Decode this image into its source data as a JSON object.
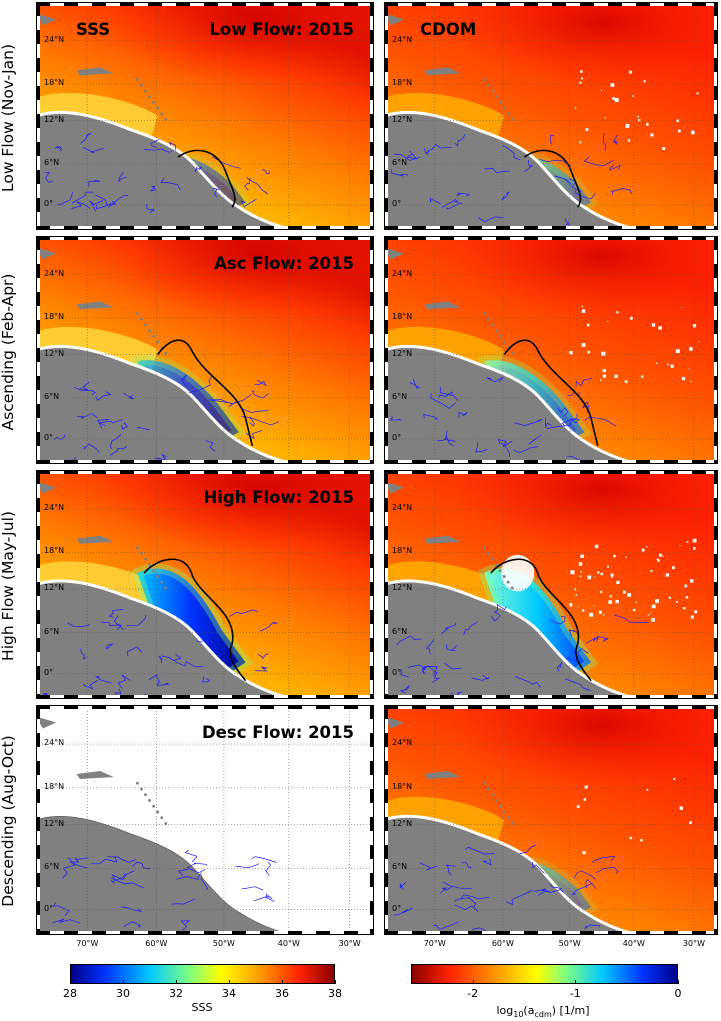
{
  "figure": {
    "left_column_title": "SSS",
    "right_column_title": "CDOM",
    "rows": [
      {
        "row_label": "Low Flow (Nov-Jan)",
        "panel_title": "Low Flow: 2015"
      },
      {
        "row_label": "Ascending (Feb-Apr)",
        "panel_title": "Asc Flow: 2015"
      },
      {
        "row_label": "High Flow (May-Jul)",
        "panel_title": "High Flow: 2015"
      },
      {
        "row_label": "Descending (Aug-Oct)",
        "panel_title": "Desc Flow: 2015"
      }
    ],
    "lat_ticks": [
      "24°N",
      "18°N",
      "12°N",
      "6°N",
      "0°"
    ],
    "lon_ticks": [
      "70°W",
      "60°W",
      "50°W",
      "40°W",
      "30°W"
    ]
  },
  "chart_data": [
    {
      "type": "heatmap",
      "variable": "SSS",
      "colorbar_label": "SSS",
      "colorbar_ticks": [
        "28",
        "30",
        "32",
        "34",
        "36",
        "38"
      ],
      "colorbar_range": [
        28,
        38
      ],
      "colormap": [
        "#00008b",
        "#0033ff",
        "#00c8ff",
        "#7fff7f",
        "#ffff00",
        "#ff9900",
        "#ff2200",
        "#8b0000"
      ],
      "ticks_lat": [
        24,
        18,
        12,
        6,
        0
      ],
      "ticks_lon": [
        -70,
        -60,
        -50,
        -40,
        -30
      ],
      "grid": true
    },
    {
      "type": "heatmap",
      "variable": "CDOM",
      "colorbar_label": "log10(acdm) [1/m]",
      "colorbar_ticks": [
        "-2",
        "-1",
        "0"
      ],
      "colorbar_range": [
        -2.6,
        0
      ],
      "colormap": [
        "#8b0000",
        "#ff2200",
        "#ff9900",
        "#ffff00",
        "#7fff7f",
        "#00c8ff",
        "#0033ff",
        "#00008b"
      ],
      "ticks_lat": [
        24,
        18,
        12,
        6,
        0
      ],
      "ticks_lon": [
        -70,
        -60,
        -50,
        -40,
        -30
      ],
      "grid": true
    }
  ],
  "colors": {
    "land": "#808080",
    "rivers": "#1a1aff",
    "plume_contour": "#000000"
  }
}
